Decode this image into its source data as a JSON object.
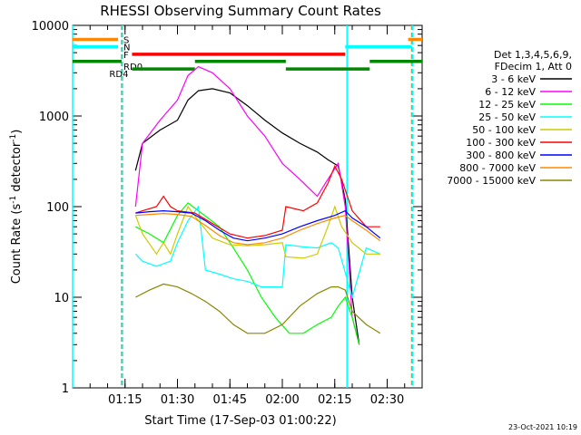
{
  "chart_data": {
    "type": "line",
    "title": "RHESSI Observing Summary Count Rates",
    "xlabel": "Start Time (17-Sep-03 01:00:22)",
    "ylabel": "Count Rate (s",
    "ylabel_sup": "-1",
    "ylabel_mid": " detector",
    "ylabel_end": ")",
    "yscale": "log",
    "ylim": [
      1,
      10000
    ],
    "xlim_minutes": [
      0,
      100
    ],
    "y_ticks": [
      {
        "value": 1,
        "label": "1"
      },
      {
        "value": 10,
        "label": "10"
      },
      {
        "value": 100,
        "label": "100"
      },
      {
        "value": 1000,
        "label": "1000"
      },
      {
        "value": 10000,
        "label": "10000"
      }
    ],
    "x_ticks": [
      {
        "minute": 15,
        "label": "01:15"
      },
      {
        "minute": 30,
        "label": "01:30"
      },
      {
        "minute": 45,
        "label": "01:45"
      },
      {
        "minute": 60,
        "label": "02:00"
      },
      {
        "minute": 75,
        "label": "02:15"
      },
      {
        "minute": 90,
        "label": "02:30"
      }
    ],
    "legend_header": [
      "Det 1,3,4,5,6,9,",
      "FDecim 1, Att 0"
    ],
    "series": [
      {
        "name": "3 - 6 keV",
        "color": "#000000",
        "points": [
          [
            18,
            250
          ],
          [
            20,
            500
          ],
          [
            25,
            700
          ],
          [
            30,
            900
          ],
          [
            33,
            1500
          ],
          [
            36,
            1900
          ],
          [
            40,
            2000
          ],
          [
            45,
            1800
          ],
          [
            50,
            1300
          ],
          [
            55,
            900
          ],
          [
            60,
            650
          ],
          [
            65,
            500
          ],
          [
            70,
            400
          ],
          [
            73,
            330
          ],
          [
            76,
            280
          ],
          [
            78,
            120
          ],
          [
            80,
            10
          ],
          [
            82,
            3
          ]
        ]
      },
      {
        "name": "6 - 12 keV",
        "color": "#ff00ff",
        "points": [
          [
            18,
            100
          ],
          [
            20,
            500
          ],
          [
            25,
            900
          ],
          [
            30,
            1500
          ],
          [
            33,
            2800
          ],
          [
            36,
            3500
          ],
          [
            40,
            3000
          ],
          [
            45,
            2000
          ],
          [
            50,
            1000
          ],
          [
            55,
            600
          ],
          [
            60,
            300
          ],
          [
            65,
            200
          ],
          [
            70,
            130
          ],
          [
            73,
            200
          ],
          [
            76,
            300
          ],
          [
            78,
            100
          ],
          [
            80,
            6
          ],
          [
            82,
            3
          ]
        ]
      },
      {
        "name": "12 - 25 keV",
        "color": "#00ff00",
        "points": [
          [
            18,
            60
          ],
          [
            22,
            50
          ],
          [
            26,
            40
          ],
          [
            30,
            80
          ],
          [
            33,
            110
          ],
          [
            36,
            90
          ],
          [
            42,
            60
          ],
          [
            46,
            35
          ],
          [
            50,
            20
          ],
          [
            54,
            10
          ],
          [
            58,
            6
          ],
          [
            62,
            4
          ],
          [
            66,
            4
          ],
          [
            70,
            5
          ],
          [
            74,
            6
          ],
          [
            76,
            8
          ],
          [
            78,
            10
          ],
          [
            80,
            6
          ],
          [
            82,
            3
          ]
        ]
      },
      {
        "name": "25 - 50 keV",
        "color": "#00ffff",
        "points": [
          [
            18,
            30
          ],
          [
            20,
            25
          ],
          [
            24,
            22
          ],
          [
            28,
            25
          ],
          [
            30,
            40
          ],
          [
            33,
            70
          ],
          [
            36,
            100
          ],
          [
            38,
            20
          ],
          [
            42,
            18
          ],
          [
            46,
            16
          ],
          [
            50,
            15
          ],
          [
            54,
            13
          ],
          [
            58,
            13
          ],
          [
            60,
            13
          ],
          [
            61,
            38
          ],
          [
            66,
            36
          ],
          [
            70,
            35
          ],
          [
            74,
            40
          ],
          [
            76,
            35
          ],
          [
            80,
            10
          ],
          [
            84,
            35
          ],
          [
            88,
            30
          ]
        ]
      },
      {
        "name": "50 - 100 keV",
        "color": "#cccc00",
        "points": [
          [
            18,
            80
          ],
          [
            20,
            50
          ],
          [
            24,
            30
          ],
          [
            26,
            40
          ],
          [
            28,
            30
          ],
          [
            30,
            50
          ],
          [
            33,
            100
          ],
          [
            36,
            70
          ],
          [
            40,
            45
          ],
          [
            45,
            38
          ],
          [
            50,
            37
          ],
          [
            55,
            38
          ],
          [
            60,
            40
          ],
          [
            61,
            28
          ],
          [
            66,
            27
          ],
          [
            70,
            30
          ],
          [
            73,
            60
          ],
          [
            75,
            100
          ],
          [
            77,
            60
          ],
          [
            80,
            40
          ],
          [
            84,
            30
          ],
          [
            88,
            30
          ]
        ]
      },
      {
        "name": "100 - 300 keV",
        "color": "#ff0000",
        "points": [
          [
            18,
            85
          ],
          [
            20,
            90
          ],
          [
            24,
            100
          ],
          [
            26,
            130
          ],
          [
            28,
            100
          ],
          [
            30,
            90
          ],
          [
            35,
            85
          ],
          [
            40,
            65
          ],
          [
            45,
            50
          ],
          [
            50,
            45
          ],
          [
            55,
            48
          ],
          [
            60,
            55
          ],
          [
            61,
            100
          ],
          [
            66,
            90
          ],
          [
            70,
            110
          ],
          [
            73,
            180
          ],
          [
            75,
            280
          ],
          [
            77,
            200
          ],
          [
            80,
            90
          ],
          [
            84,
            60
          ],
          [
            88,
            60
          ]
        ]
      },
      {
        "name": "300 - 800 keV",
        "color": "#0000ff",
        "points": [
          [
            18,
            85
          ],
          [
            22,
            88
          ],
          [
            26,
            90
          ],
          [
            30,
            88
          ],
          [
            34,
            85
          ],
          [
            38,
            70
          ],
          [
            42,
            55
          ],
          [
            46,
            45
          ],
          [
            50,
            42
          ],
          [
            55,
            45
          ],
          [
            60,
            50
          ],
          [
            65,
            60
          ],
          [
            70,
            70
          ],
          [
            75,
            80
          ],
          [
            78,
            90
          ],
          [
            80,
            75
          ],
          [
            84,
            60
          ],
          [
            88,
            45
          ]
        ]
      },
      {
        "name": "800 - 7000 keV",
        "color": "#ff8800",
        "points": [
          [
            18,
            80
          ],
          [
            22,
            82
          ],
          [
            26,
            84
          ],
          [
            30,
            82
          ],
          [
            34,
            78
          ],
          [
            38,
            62
          ],
          [
            42,
            48
          ],
          [
            46,
            40
          ],
          [
            50,
            38
          ],
          [
            55,
            40
          ],
          [
            60,
            45
          ],
          [
            65,
            55
          ],
          [
            70,
            65
          ],
          [
            75,
            75
          ],
          [
            78,
            80
          ],
          [
            80,
            70
          ],
          [
            84,
            55
          ],
          [
            88,
            42
          ]
        ]
      },
      {
        "name": "7000 - 15000 keV",
        "color": "#888800",
        "points": [
          [
            18,
            10
          ],
          [
            22,
            12
          ],
          [
            26,
            14
          ],
          [
            30,
            13
          ],
          [
            34,
            11
          ],
          [
            38,
            9
          ],
          [
            42,
            7
          ],
          [
            46,
            5
          ],
          [
            50,
            4
          ],
          [
            55,
            4
          ],
          [
            60,
            5
          ],
          [
            65,
            8
          ],
          [
            70,
            11
          ],
          [
            74,
            13
          ],
          [
            76,
            13
          ],
          [
            78,
            12
          ],
          [
            80,
            7
          ],
          [
            84,
            5
          ],
          [
            88,
            4
          ]
        ]
      }
    ],
    "state_bars": [
      {
        "label": "S",
        "color": "#ff8800",
        "level": 7000,
        "segments": [
          [
            -10,
            13
          ],
          [
            96,
            100
          ]
        ]
      },
      {
        "label": "N",
        "color": "#00ffff",
        "level": 5800,
        "segments": [
          [
            -10,
            13
          ],
          [
            78,
            97
          ]
        ]
      },
      {
        "label": "F",
        "color": "#ff0000",
        "level": 4800,
        "segments": [
          [
            17,
            78
          ]
        ]
      },
      {
        "label": "RD0",
        "color": "#008800",
        "level": 4000,
        "segments": [
          [
            -10,
            14
          ],
          [
            35,
            61
          ],
          [
            85,
            100
          ]
        ]
      },
      {
        "label": "RD4",
        "color": "#008800",
        "level": 3300,
        "segments": [
          [
            17,
            35
          ],
          [
            61,
            85
          ]
        ]
      }
    ],
    "vertical_markers": [
      {
        "minute": -2,
        "color": "#00ffff",
        "dashed": false
      },
      {
        "minute": 14,
        "color": "#ff8800",
        "dashed": true
      },
      {
        "minute": 14.3,
        "color": "#00ffff",
        "dashed": true
      },
      {
        "minute": 78.5,
        "color": "#00ffff",
        "dashed": false
      },
      {
        "minute": 97,
        "color": "#ff8800",
        "dashed": true
      },
      {
        "minute": 97.3,
        "color": "#00ffff",
        "dashed": true
      }
    ],
    "footer": "23-Oct-2021 10:19"
  }
}
